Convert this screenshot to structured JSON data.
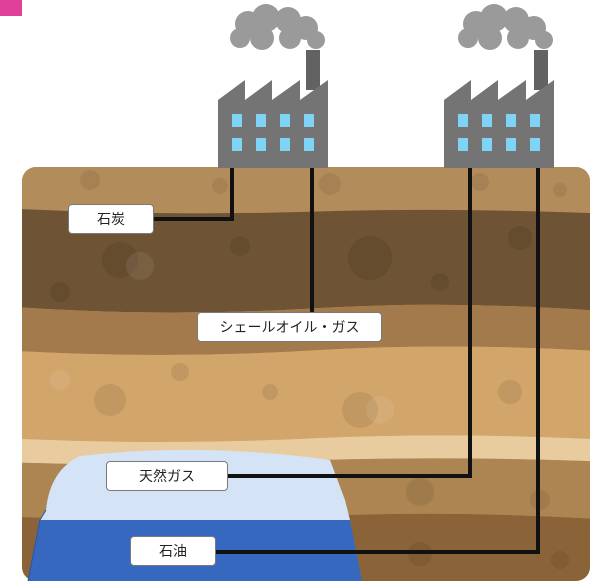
{
  "labels": {
    "coal": "石炭",
    "shale": "シェールオイル・ガス",
    "natural_gas": "天然ガス",
    "oil": "石油"
  },
  "icons": {
    "factory_left": "factory-icon",
    "factory_right": "factory-icon",
    "corner_marker": "pink-square"
  },
  "colors": {
    "accent_pink": "#e0409a",
    "factory": "#747474",
    "smoke": "#9a9a9a",
    "window": "#7fd3f5",
    "gas_reservoir": "#d4e4f6",
    "oil_reservoir": "#3768c0",
    "pipe": "#111111"
  }
}
